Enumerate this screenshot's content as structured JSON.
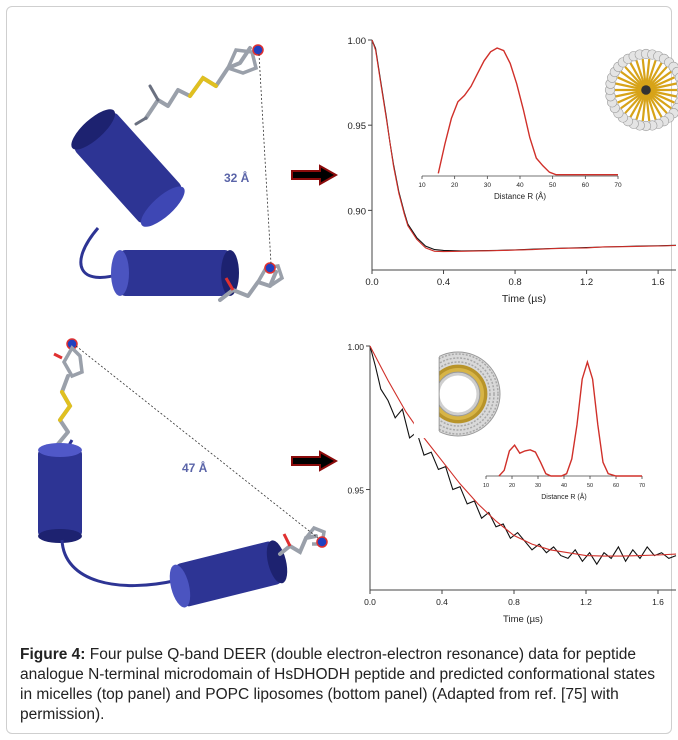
{
  "caption": {
    "label": "Figure 4:",
    "text": " Four pulse Q-band DEER (double electron-electron resonance) data for peptide analogue N-terminal microdomain of HsDHODH peptide and predicted conformational states in micelles (top panel) and POPC liposomes (bottom panel) (Adapted from ref. [75] with permission)."
  },
  "top_panel": {
    "distance_label": "32 Å"
  },
  "bottom_panel": {
    "distance_label": "47 Å"
  },
  "colors": {
    "helix": "#2d3494",
    "fit": "#d0302a",
    "data": "#111111",
    "arrow": "#8b0b0b"
  },
  "chart_data": [
    {
      "type": "line",
      "title": "",
      "xlabel": "Time (µs)",
      "ylabel": "",
      "xlim": [
        0,
        1.7
      ],
      "ylim": [
        0.865,
        1.0
      ],
      "xticks": [
        "0.0",
        "0.4",
        "0.8",
        "1.2",
        "1.6"
      ],
      "yticks": [
        "0.90",
        "0.95",
        "1.00"
      ],
      "series": [
        {
          "x": [
            0,
            0.02,
            0.05,
            0.08,
            0.1,
            0.12,
            0.15,
            0.18,
            0.2,
            0.25,
            0.3,
            0.35,
            0.4,
            0.5,
            0.6,
            0.7,
            0.8,
            0.9,
            1.0,
            1.1,
            1.2,
            1.3,
            1.4,
            1.5,
            1.6,
            1.7
          ],
          "values": [
            1.0,
            0.995,
            0.975,
            0.955,
            0.94,
            0.927,
            0.911,
            0.899,
            0.892,
            0.884,
            0.879,
            0.877,
            0.8765,
            0.8762,
            0.8763,
            0.8765,
            0.8768,
            0.8772,
            0.8776,
            0.8779,
            0.8782,
            0.8785,
            0.8788,
            0.879,
            0.8792,
            0.8795
          ]
        },
        {
          "x": [
            0,
            0.02,
            0.05,
            0.08,
            0.1,
            0.12,
            0.15,
            0.18,
            0.2,
            0.25,
            0.3,
            0.35,
            0.4,
            0.5,
            0.6,
            0.7,
            0.8,
            0.9,
            1.0,
            1.1,
            1.2,
            1.3,
            1.4,
            1.5,
            1.6,
            1.7
          ],
          "values": [
            1.0,
            0.994,
            0.974,
            0.954,
            0.94,
            0.926,
            0.91,
            0.898,
            0.891,
            0.883,
            0.878,
            0.876,
            0.8758,
            0.876,
            0.8762,
            0.8764,
            0.8767,
            0.877,
            0.8775,
            0.8778,
            0.878,
            0.8786,
            0.8787,
            0.8789,
            0.8791,
            0.8794
          ]
        }
      ],
      "inset": {
        "type": "line",
        "xlabel": "Distance R (Å)",
        "xlim": [
          10,
          70
        ],
        "xticks": [
          "10",
          "20",
          "30",
          "40",
          "50",
          "60",
          "70"
        ],
        "ylim": [
          0,
          1
        ],
        "x": [
          15,
          17,
          19,
          21,
          23,
          25,
          27,
          29,
          31,
          33,
          35,
          37,
          39,
          41,
          43,
          45,
          47,
          49,
          51,
          55,
          60,
          65,
          70
        ],
        "values": [
          0.02,
          0.25,
          0.45,
          0.58,
          0.63,
          0.7,
          0.8,
          0.9,
          0.97,
          1.0,
          0.98,
          0.88,
          0.72,
          0.52,
          0.3,
          0.14,
          0.08,
          0.03,
          0.01,
          0.01,
          0.01,
          0.01,
          0.01
        ]
      }
    },
    {
      "type": "line",
      "title": "",
      "xlabel": "Time (µs)",
      "ylabel": "",
      "xlim": [
        0,
        1.7
      ],
      "ylim": [
        0.915,
        1.0
      ],
      "xticks": [
        "0.0",
        "0.4",
        "0.8",
        "1.2",
        "1.6"
      ],
      "yticks": [
        "0.95",
        "1.00"
      ],
      "series": [
        {
          "x": [
            0,
            0.03,
            0.06,
            0.1,
            0.14,
            0.18,
            0.22,
            0.26,
            0.3,
            0.34,
            0.38,
            0.42,
            0.46,
            0.5,
            0.54,
            0.58,
            0.62,
            0.66,
            0.7,
            0.74,
            0.78,
            0.82,
            0.86,
            0.9,
            0.94,
            0.98,
            1.02,
            1.06,
            1.1,
            1.14,
            1.18,
            1.22,
            1.26,
            1.3,
            1.34,
            1.38,
            1.42,
            1.46,
            1.5,
            1.54,
            1.58,
            1.62,
            1.66,
            1.7
          ],
          "values": [
            1.0,
            0.993,
            0.985,
            0.981,
            0.975,
            0.978,
            0.968,
            0.97,
            0.962,
            0.963,
            0.957,
            0.958,
            0.95,
            0.951,
            0.945,
            0.946,
            0.94,
            0.942,
            0.937,
            0.938,
            0.933,
            0.935,
            0.932,
            0.929,
            0.931,
            0.928,
            0.93,
            0.927,
            0.926,
            0.929,
            0.925,
            0.928,
            0.924,
            0.928,
            0.926,
            0.93,
            0.925,
            0.929,
            0.926,
            0.93,
            0.927,
            0.928,
            0.926,
            0.927
          ]
        },
        {
          "x": [
            0,
            0.05,
            0.1,
            0.2,
            0.3,
            0.4,
            0.5,
            0.6,
            0.7,
            0.8,
            0.9,
            1.0,
            1.1,
            1.2,
            1.3,
            1.4,
            1.5,
            1.6,
            1.7
          ],
          "values": [
            1.0,
            0.994,
            0.988,
            0.977,
            0.968,
            0.96,
            0.952,
            0.945,
            0.939,
            0.934,
            0.931,
            0.929,
            0.928,
            0.927,
            0.9268,
            0.9268,
            0.927,
            0.9272,
            0.9275
          ]
        }
      ],
      "inset": {
        "type": "line",
        "xlabel": "Distance R (Å)",
        "xlim": [
          10,
          70
        ],
        "xticks": [
          "10",
          "20",
          "30",
          "40",
          "50",
          "60",
          "70"
        ],
        "ylim": [
          0,
          1
        ],
        "x": [
          15,
          17,
          19,
          21,
          23,
          25,
          27,
          29,
          31,
          33,
          35,
          37,
          39,
          41,
          43,
          45,
          47,
          49,
          51,
          53,
          55,
          57,
          60,
          65,
          70
        ],
        "values": [
          0.0,
          0.05,
          0.22,
          0.27,
          0.2,
          0.22,
          0.23,
          0.21,
          0.12,
          0.02,
          0.0,
          0.0,
          0.0,
          0.02,
          0.15,
          0.45,
          0.85,
          1.0,
          0.85,
          0.45,
          0.12,
          0.02,
          0.0,
          0.0,
          0.0
        ]
      }
    }
  ]
}
